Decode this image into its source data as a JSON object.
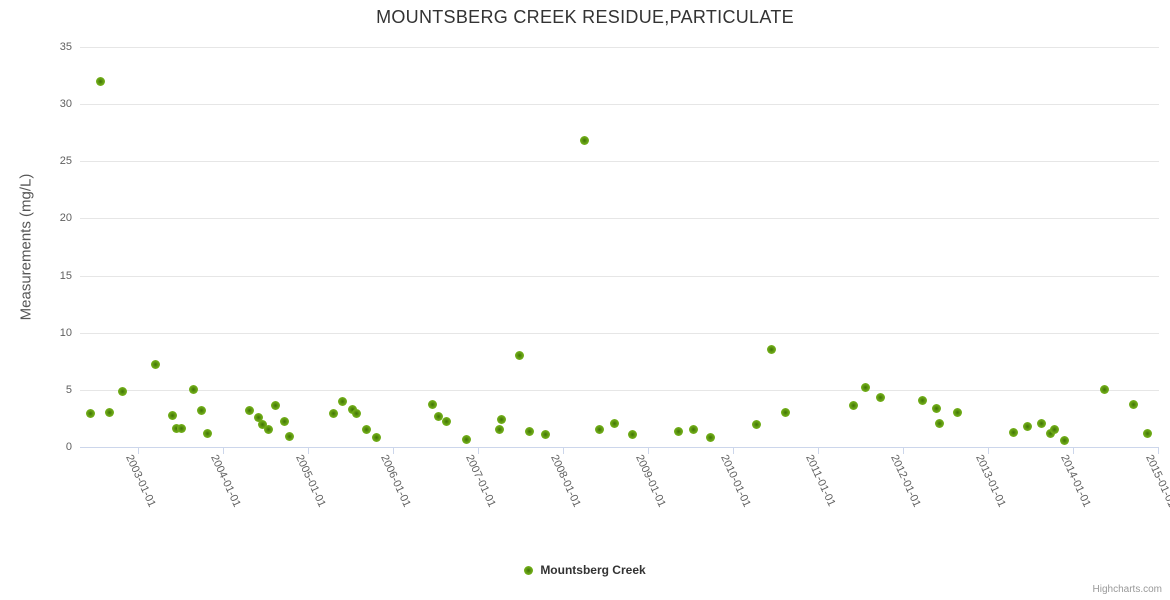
{
  "chart": {
    "title": "MOUNTSBERG CREEK RESIDUE,PARTICULATE",
    "y_axis_title": "Measurements (mg/L)",
    "legend_label": "Mountsberg Creek",
    "credit": "Highcharts.com"
  },
  "colors": {
    "background": "#ffffff",
    "point_outer": "#86c525",
    "point_mid": "#65a013",
    "point_inner": "#3f7207",
    "gridline": "#e6e6e6",
    "axis_line": "#ccd6eb",
    "title_text": "#333333",
    "axis_label_text": "#606060",
    "y_axis_title_text": "#555555",
    "credit_text": "#999999"
  },
  "chart_data": {
    "type": "scatter",
    "title": "MOUNTSBERG CREEK RESIDUE,PARTICULATE",
    "xlabel": "",
    "ylabel": "Measurements (mg/L)",
    "ylim": [
      0,
      35
    ],
    "yticks": [
      0,
      5,
      10,
      15,
      20,
      25,
      30,
      35
    ],
    "xlim_years": [
      2002.32,
      2015.05
    ],
    "xtick_labels": [
      "2003-01-01",
      "2004-01-01",
      "2005-01-01",
      "2006-01-01",
      "2007-01-01",
      "2008-01-01",
      "2009-01-01",
      "2010-01-01",
      "2011-01-01",
      "2012-01-01",
      "2013-01-01",
      "2014-01-01",
      "2015-01-01"
    ],
    "grid": "horizontal-only",
    "legend_position": "bottom-center",
    "legend_entries": [
      "Mountsberg Creek"
    ],
    "series": [
      {
        "name": "Mountsberg Creek",
        "marker": "circle",
        "marker_color": "#86c525",
        "points_x_decimal_year_y_mg_per_L": [
          [
            2002.44,
            2.9
          ],
          [
            2002.56,
            32.0
          ],
          [
            2002.67,
            3.0
          ],
          [
            2002.82,
            4.9
          ],
          [
            2003.2,
            7.2
          ],
          [
            2003.4,
            2.8
          ],
          [
            2003.45,
            1.6
          ],
          [
            2003.51,
            1.6
          ],
          [
            2003.65,
            5.0
          ],
          [
            2003.75,
            3.2
          ],
          [
            2003.82,
            1.2
          ],
          [
            2004.31,
            3.2
          ],
          [
            2004.42,
            2.6
          ],
          [
            2004.47,
            2.0
          ],
          [
            2004.53,
            1.5
          ],
          [
            2004.62,
            3.6
          ],
          [
            2004.72,
            2.2
          ],
          [
            2004.78,
            0.9
          ],
          [
            2005.3,
            2.9
          ],
          [
            2005.4,
            4.0
          ],
          [
            2005.52,
            3.3
          ],
          [
            2005.57,
            2.9
          ],
          [
            2005.69,
            1.5
          ],
          [
            2005.8,
            0.8
          ],
          [
            2006.47,
            3.7
          ],
          [
            2006.53,
            2.7
          ],
          [
            2006.63,
            2.2
          ],
          [
            2006.86,
            0.7
          ],
          [
            2007.25,
            1.5
          ],
          [
            2007.28,
            2.4
          ],
          [
            2007.49,
            8.0
          ],
          [
            2007.61,
            1.4
          ],
          [
            2007.79,
            1.1
          ],
          [
            2008.25,
            26.8
          ],
          [
            2008.43,
            1.5
          ],
          [
            2008.61,
            2.1
          ],
          [
            2008.82,
            1.1
          ],
          [
            2009.36,
            1.4
          ],
          [
            2009.53,
            1.5
          ],
          [
            2009.74,
            0.8
          ],
          [
            2010.28,
            2.0
          ],
          [
            2010.45,
            8.5
          ],
          [
            2010.62,
            3.0
          ],
          [
            2011.42,
            3.6
          ],
          [
            2011.56,
            5.2
          ],
          [
            2011.74,
            4.3
          ],
          [
            2012.23,
            4.1
          ],
          [
            2012.39,
            3.4
          ],
          [
            2012.43,
            2.1
          ],
          [
            2012.64,
            3.0
          ],
          [
            2013.3,
            1.3
          ],
          [
            2013.47,
            1.8
          ],
          [
            2013.63,
            2.1
          ],
          [
            2013.73,
            1.2
          ],
          [
            2013.78,
            1.5
          ],
          [
            2013.9,
            0.6
          ],
          [
            2014.37,
            5.0
          ],
          [
            2014.71,
            3.7
          ],
          [
            2014.88,
            1.2
          ]
        ]
      }
    ]
  }
}
